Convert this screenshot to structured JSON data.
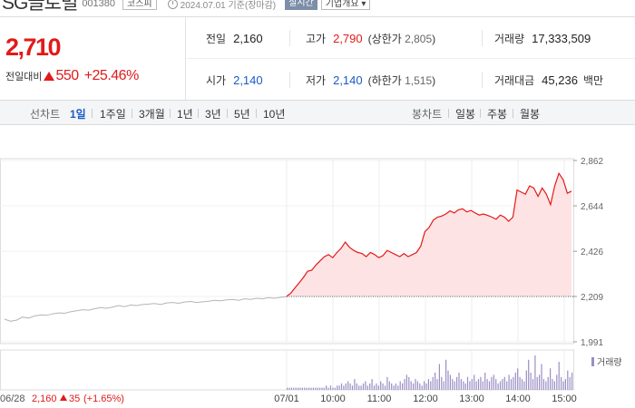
{
  "header": {
    "stock_name": "SG글로벌",
    "stock_code": "001380",
    "market": "코스피",
    "as_of": "2024.07.01 기준(장마감)",
    "realtime": "실시간",
    "corp_overview": "기업개요"
  },
  "price": {
    "current": "2,710",
    "change_label": "전일대비",
    "change_amount": "550",
    "change_pct": "+25.46%",
    "direction": "up"
  },
  "info": {
    "prev_close": {
      "label": "전일",
      "value": "2,160"
    },
    "high": {
      "label": "고가",
      "value": "2,790",
      "limit_label": "상한가",
      "limit_value": "2,805"
    },
    "volume": {
      "label": "거래량",
      "value": "17,333,509"
    },
    "open": {
      "label": "시가",
      "value": "2,140"
    },
    "low": {
      "label": "저가",
      "value": "2,140",
      "limit_label": "하한가",
      "limit_value": "1,515"
    },
    "trade_value": {
      "label": "거래대금",
      "value": "45,236",
      "unit": "백만"
    }
  },
  "chart_options": {
    "line_label": "선차트",
    "periods": [
      "1일",
      "1주일",
      "3개월",
      "1년",
      "3년",
      "5년",
      "10년"
    ],
    "active_period": "1일",
    "candle_label": "봉차트",
    "candles": [
      "일봉",
      "주봉",
      "월봉"
    ]
  },
  "colors": {
    "up": "#e21a1a",
    "down": "#1a5bc4",
    "volume": "#9b8ec4",
    "prev_line": "#b5b5b5"
  },
  "chart_data": {
    "type": "line",
    "y_ticks": [
      "2,862",
      "2,644",
      "2,426",
      "2,209",
      "1,991"
    ],
    "ylim": [
      1991,
      2862
    ],
    "x_ticks": [
      "07/01",
      "10:00",
      "11:00",
      "12:00",
      "13:00",
      "14:00",
      "15:00"
    ],
    "prev_day": {
      "date": "06/28",
      "close": "2,160",
      "change": "35",
      "change_pct": "(+1.65%)",
      "direction": "up"
    },
    "prev_day_series": [
      2100,
      2090,
      2095,
      2110,
      2105,
      2115,
      2120,
      2118,
      2125,
      2130,
      2128,
      2135,
      2140,
      2145,
      2143,
      2150,
      2155,
      2152,
      2158,
      2165,
      2160,
      2168,
      2165,
      2170,
      2172,
      2175,
      2170,
      2178,
      2180,
      2176,
      2182,
      2185,
      2180,
      2183,
      2186,
      2190,
      2188,
      2192,
      2195,
      2190,
      2198,
      2195,
      2200,
      2198,
      2203,
      2200,
      2205,
      2208
    ],
    "today_series": [
      2209,
      2225,
      2250,
      2275,
      2300,
      2330,
      2335,
      2360,
      2380,
      2400,
      2410,
      2395,
      2420,
      2440,
      2470,
      2445,
      2430,
      2420,
      2415,
      2400,
      2420,
      2410,
      2395,
      2405,
      2430,
      2420,
      2410,
      2400,
      2415,
      2400,
      2410,
      2420,
      2450,
      2520,
      2540,
      2575,
      2590,
      2595,
      2605,
      2620,
      2610,
      2625,
      2630,
      2615,
      2622,
      2610,
      2600,
      2605,
      2598,
      2590,
      2580,
      2600,
      2590,
      2570,
      2590,
      2720,
      2710,
      2700,
      2740,
      2730,
      2690,
      2730,
      2700,
      2650,
      2740,
      2800,
      2770,
      2705,
      2715
    ],
    "volume_series": [
      1,
      1,
      1,
      1,
      1,
      1,
      1,
      1,
      1,
      1,
      1,
      1,
      1,
      1,
      1,
      1,
      1,
      1,
      2,
      1,
      2,
      1,
      1,
      2,
      2,
      3,
      2,
      3,
      4,
      3,
      2,
      5,
      3,
      2,
      2,
      3,
      4,
      2,
      3,
      5,
      2,
      3,
      2,
      4,
      3,
      2,
      6,
      4,
      3,
      2,
      3,
      2,
      4,
      3,
      5,
      7,
      6,
      4,
      3,
      5,
      4,
      3,
      2,
      4,
      3,
      5,
      4,
      6,
      8,
      5,
      12,
      6,
      4,
      14,
      9,
      7,
      5,
      4,
      6,
      8,
      5,
      4,
      3,
      6,
      4,
      5,
      7,
      4,
      5,
      6,
      4,
      8,
      5,
      4,
      6,
      7,
      5,
      3,
      4,
      5,
      6,
      4,
      7,
      5,
      6,
      8,
      10,
      6,
      5,
      4,
      9,
      14,
      8,
      5,
      16,
      6,
      7,
      12,
      5,
      4,
      6,
      10,
      5,
      4,
      7,
      13,
      6,
      4,
      5,
      9,
      6,
      8
    ],
    "volume_legend": "거래량"
  }
}
